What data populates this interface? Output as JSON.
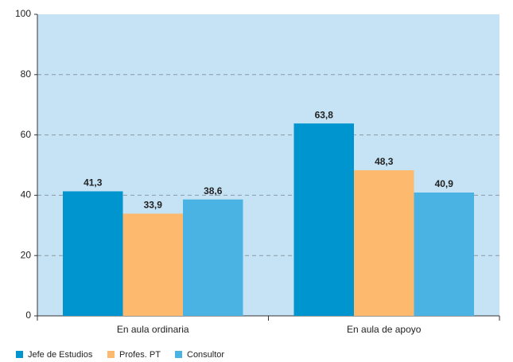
{
  "chart_data": {
    "type": "bar",
    "categories": [
      "En aula ordinaria",
      "En aula de apoyo"
    ],
    "series": [
      {
        "name": "Jefe de Estudios",
        "color": "#0095cf",
        "values": [
          41.3,
          63.8
        ],
        "value_labels": [
          "41,3",
          "63,8"
        ]
      },
      {
        "name": "Profes. PT",
        "color": "#fdb96e",
        "values": [
          33.9,
          48.3
        ],
        "value_labels": [
          "33,9",
          "48,3"
        ]
      },
      {
        "name": "Consultor",
        "color": "#4ab3e3",
        "values": [
          38.6,
          40.9
        ],
        "value_labels": [
          "38,6",
          "40,9"
        ]
      }
    ],
    "ylim": [
      0,
      100
    ],
    "yticks": [
      0,
      20,
      40,
      60,
      80,
      100
    ],
    "grid": true,
    "legend": "bottom"
  }
}
